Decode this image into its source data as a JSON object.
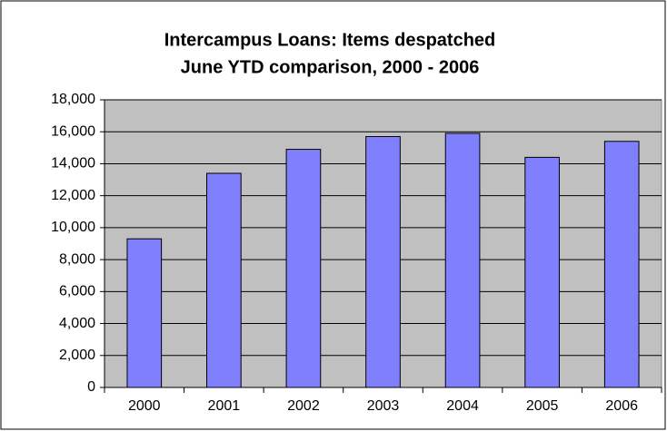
{
  "chart_data": {
    "type": "bar",
    "title": [
      "Intercampus Loans: Items despatched",
      "June YTD comparison, 2000 - 2006"
    ],
    "categories": [
      "2000",
      "2001",
      "2002",
      "2003",
      "2004",
      "2005",
      "2006"
    ],
    "values": [
      9300,
      13400,
      14900,
      15700,
      15900,
      14400,
      15400
    ],
    "color": "#8080ff",
    "ylim": [
      0,
      18000
    ],
    "yticks": [
      0,
      {
        "value": 2000,
        "label": "2,000"
      },
      {
        "value": 4000,
        "label": "4,000"
      },
      {
        "value": 6000,
        "label": "6,000"
      },
      {
        "value": 8000,
        "label": "8,000"
      },
      {
        "value": 10000,
        "label": "10,000"
      },
      {
        "value": 12000,
        "label": "12,000"
      },
      {
        "value": 14000,
        "label": "14,000"
      },
      {
        "value": 16000,
        "label": "16,000"
      },
      {
        "value": 18000,
        "label": "18,000"
      }
    ],
    "grid": true
  }
}
